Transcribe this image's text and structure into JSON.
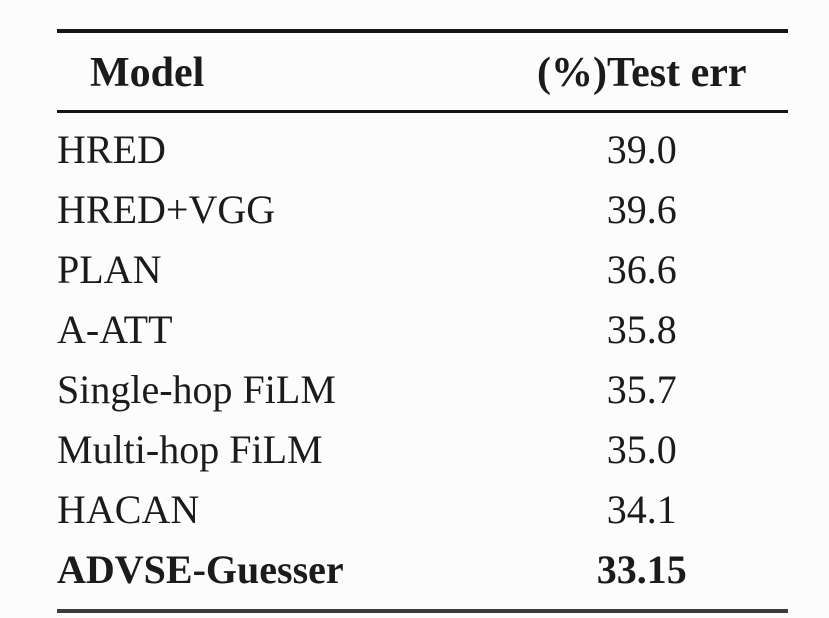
{
  "page": {
    "background": "#fcfcfc"
  },
  "colors": {
    "text": "#1b1b1b",
    "rule_top": "#161616",
    "rule_header": "#161616",
    "rule_bottom": "#3c3c3c",
    "background": "#fcfcfc"
  },
  "chart_data": {
    "type": "table",
    "title": "",
    "columns": [
      "Model",
      "(%)Test err"
    ],
    "rows": [
      {
        "model": "HRED",
        "test_err": "39.0",
        "bold": false
      },
      {
        "model": "HRED+VGG",
        "test_err": "39.6",
        "bold": false
      },
      {
        "model": "PLAN",
        "test_err": "36.6",
        "bold": false
      },
      {
        "model": "A-ATT",
        "test_err": "35.8",
        "bold": false
      },
      {
        "model": "Single-hop FiLM",
        "test_err": "35.7",
        "bold": false
      },
      {
        "model": "Multi-hop FiLM",
        "test_err": "35.0",
        "bold": false
      },
      {
        "model": "HACAN",
        "test_err": "34.1",
        "bold": false
      },
      {
        "model": "ADVSE-Guesser",
        "test_err": "33.15",
        "bold": true
      }
    ]
  }
}
